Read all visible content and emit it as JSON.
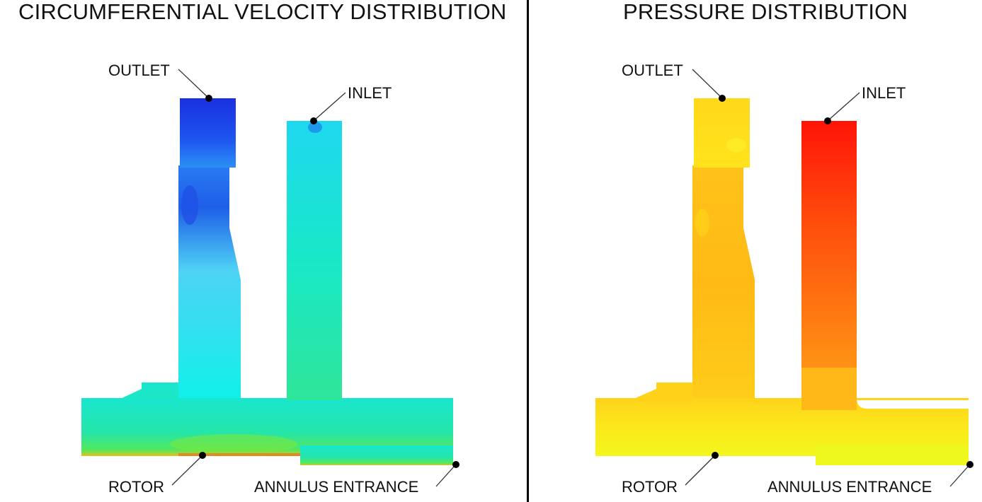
{
  "panels": [
    {
      "title": "CIRCUMFERENTIAL VELOCITY DISTRIBUTION",
      "labels": {
        "outlet": "OUTLET",
        "inlet": "INLET",
        "rotor": "ROTOR",
        "annulus": "ANNULUS ENTRANCE"
      },
      "colors": {
        "outlet_block": "#1f3fe0",
        "main": "#18e6d8",
        "lower": "#2de7a0",
        "inlet_column": "#1be6c4"
      }
    },
    {
      "title": "PRESSURE DISTRIBUTION",
      "labels": {
        "outlet": "OUTLET",
        "inlet": "INLET",
        "rotor": "ROTOR",
        "annulus": "ANNULUS ENTRANCE"
      },
      "colors": {
        "outlet_block": "#ffe21a",
        "main": "#ffc419",
        "lower": "#f4f41a",
        "inlet_top": "#ff1a0a",
        "inlet_bottom": "#ff8a14"
      }
    }
  ]
}
